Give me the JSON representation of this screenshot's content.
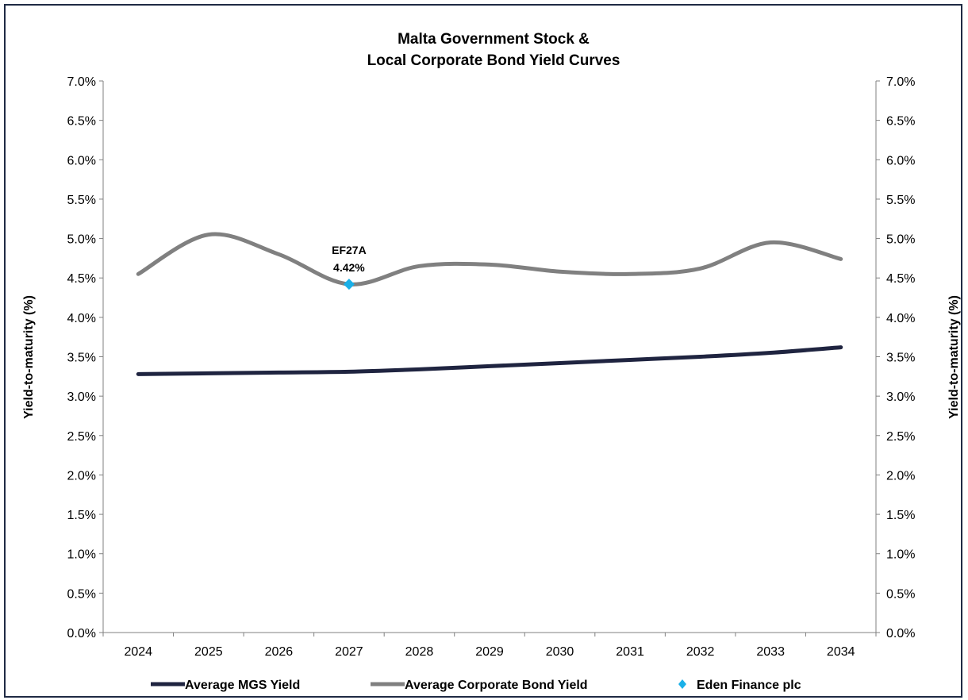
{
  "chart_data": {
    "type": "line",
    "title_lines": [
      "Malta Government Stock &",
      "Local Corporate Bond Yield Curves"
    ],
    "x": [
      2024,
      2025,
      2026,
      2027,
      2028,
      2029,
      2030,
      2031,
      2032,
      2033,
      2034
    ],
    "ylabel": "Yield-to-maturity (%)",
    "ylabel_right": "Yield-to-maturity (%)",
    "ylim": [
      0,
      7
    ],
    "ytick_step": 0.5,
    "y_tick_labels": [
      "0.0%",
      "0.5%",
      "1.0%",
      "1.5%",
      "2.0%",
      "2.5%",
      "3.0%",
      "3.5%",
      "4.0%",
      "4.5%",
      "5.0%",
      "5.5%",
      "6.0%",
      "6.5%",
      "7.0%"
    ],
    "x_tick_labels": [
      "2024",
      "2025",
      "2026",
      "2027",
      "2028",
      "2029",
      "2030",
      "2031",
      "2032",
      "2033",
      "2034"
    ],
    "grid": false,
    "legend_position": "bottom",
    "series": [
      {
        "name": "Average MGS Yield",
        "type": "line",
        "color": "#1f2440",
        "values": [
          3.28,
          3.29,
          3.3,
          3.31,
          3.34,
          3.38,
          3.42,
          3.46,
          3.5,
          3.55,
          3.62
        ]
      },
      {
        "name": "Average Corporate Bond Yield",
        "type": "line",
        "color": "#808080",
        "values": [
          4.55,
          5.05,
          4.8,
          4.42,
          4.65,
          4.67,
          4.58,
          4.55,
          4.62,
          4.95,
          4.74
        ]
      },
      {
        "name": "Eden Finance plc",
        "type": "scatter",
        "marker": "diamond",
        "color": "#1ab0e8",
        "points": [
          {
            "x": 2027,
            "y": 4.42,
            "label_line1": "EF27A",
            "label_line2": "4.42%"
          }
        ]
      }
    ]
  }
}
